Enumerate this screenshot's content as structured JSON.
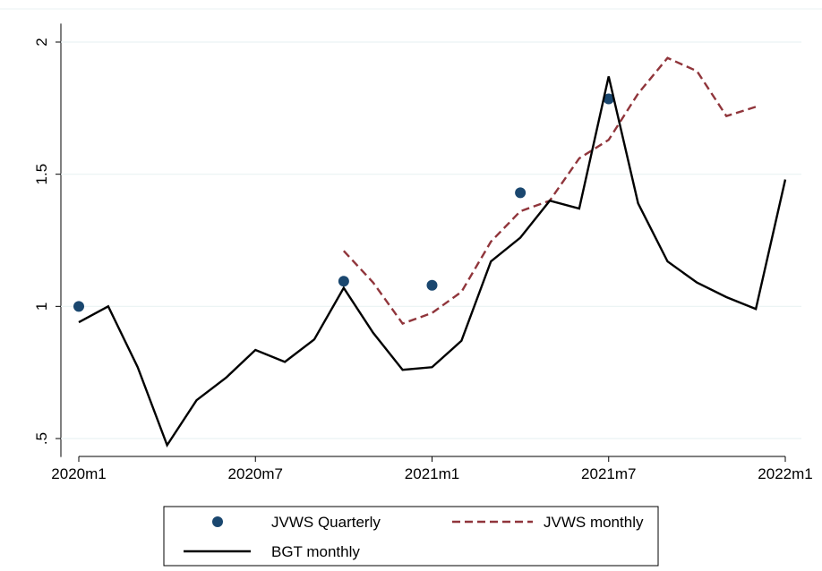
{
  "chart_data": {
    "type": "line",
    "categories": [
      "2020m1",
      null,
      null,
      null,
      null,
      null,
      "2020m7",
      null,
      null,
      null,
      null,
      null,
      "2021m1",
      null,
      null,
      null,
      null,
      null,
      "2021m7",
      null,
      null,
      null,
      null,
      null,
      "2022m1"
    ],
    "series": [
      {
        "name": "JVWS Quarterly",
        "color": "#1a476f",
        "style": "dot",
        "values": [
          1.0,
          null,
          null,
          null,
          null,
          null,
          null,
          null,
          null,
          1.095,
          null,
          null,
          1.08,
          null,
          null,
          1.43,
          null,
          null,
          1.785,
          null,
          null,
          null,
          null,
          null,
          null
        ]
      },
      {
        "name": "JVWS monthly",
        "color": "#90353b",
        "style": "dash",
        "values": [
          null,
          null,
          null,
          null,
          null,
          null,
          null,
          null,
          null,
          1.21,
          1.09,
          0.935,
          0.975,
          1.055,
          1.245,
          1.36,
          1.4,
          1.56,
          1.63,
          1.805,
          1.94,
          1.89,
          1.72,
          1.755,
          null
        ]
      },
      {
        "name": "BGT monthly",
        "color": "#000000",
        "style": "solid",
        "values": [
          0.94,
          1.0,
          0.77,
          0.475,
          0.645,
          0.73,
          0.835,
          0.79,
          0.875,
          1.07,
          0.9,
          0.76,
          0.77,
          0.87,
          1.17,
          1.26,
          1.4,
          1.37,
          1.87,
          1.39,
          1.17,
          1.09,
          1.035,
          0.99,
          1.48
        ]
      }
    ],
    "ylim": [
      0.43,
      2.07
    ],
    "yticks": [
      {
        "value": 0.5,
        "label": ".5"
      },
      1,
      1.5,
      2
    ],
    "grid": true
  }
}
